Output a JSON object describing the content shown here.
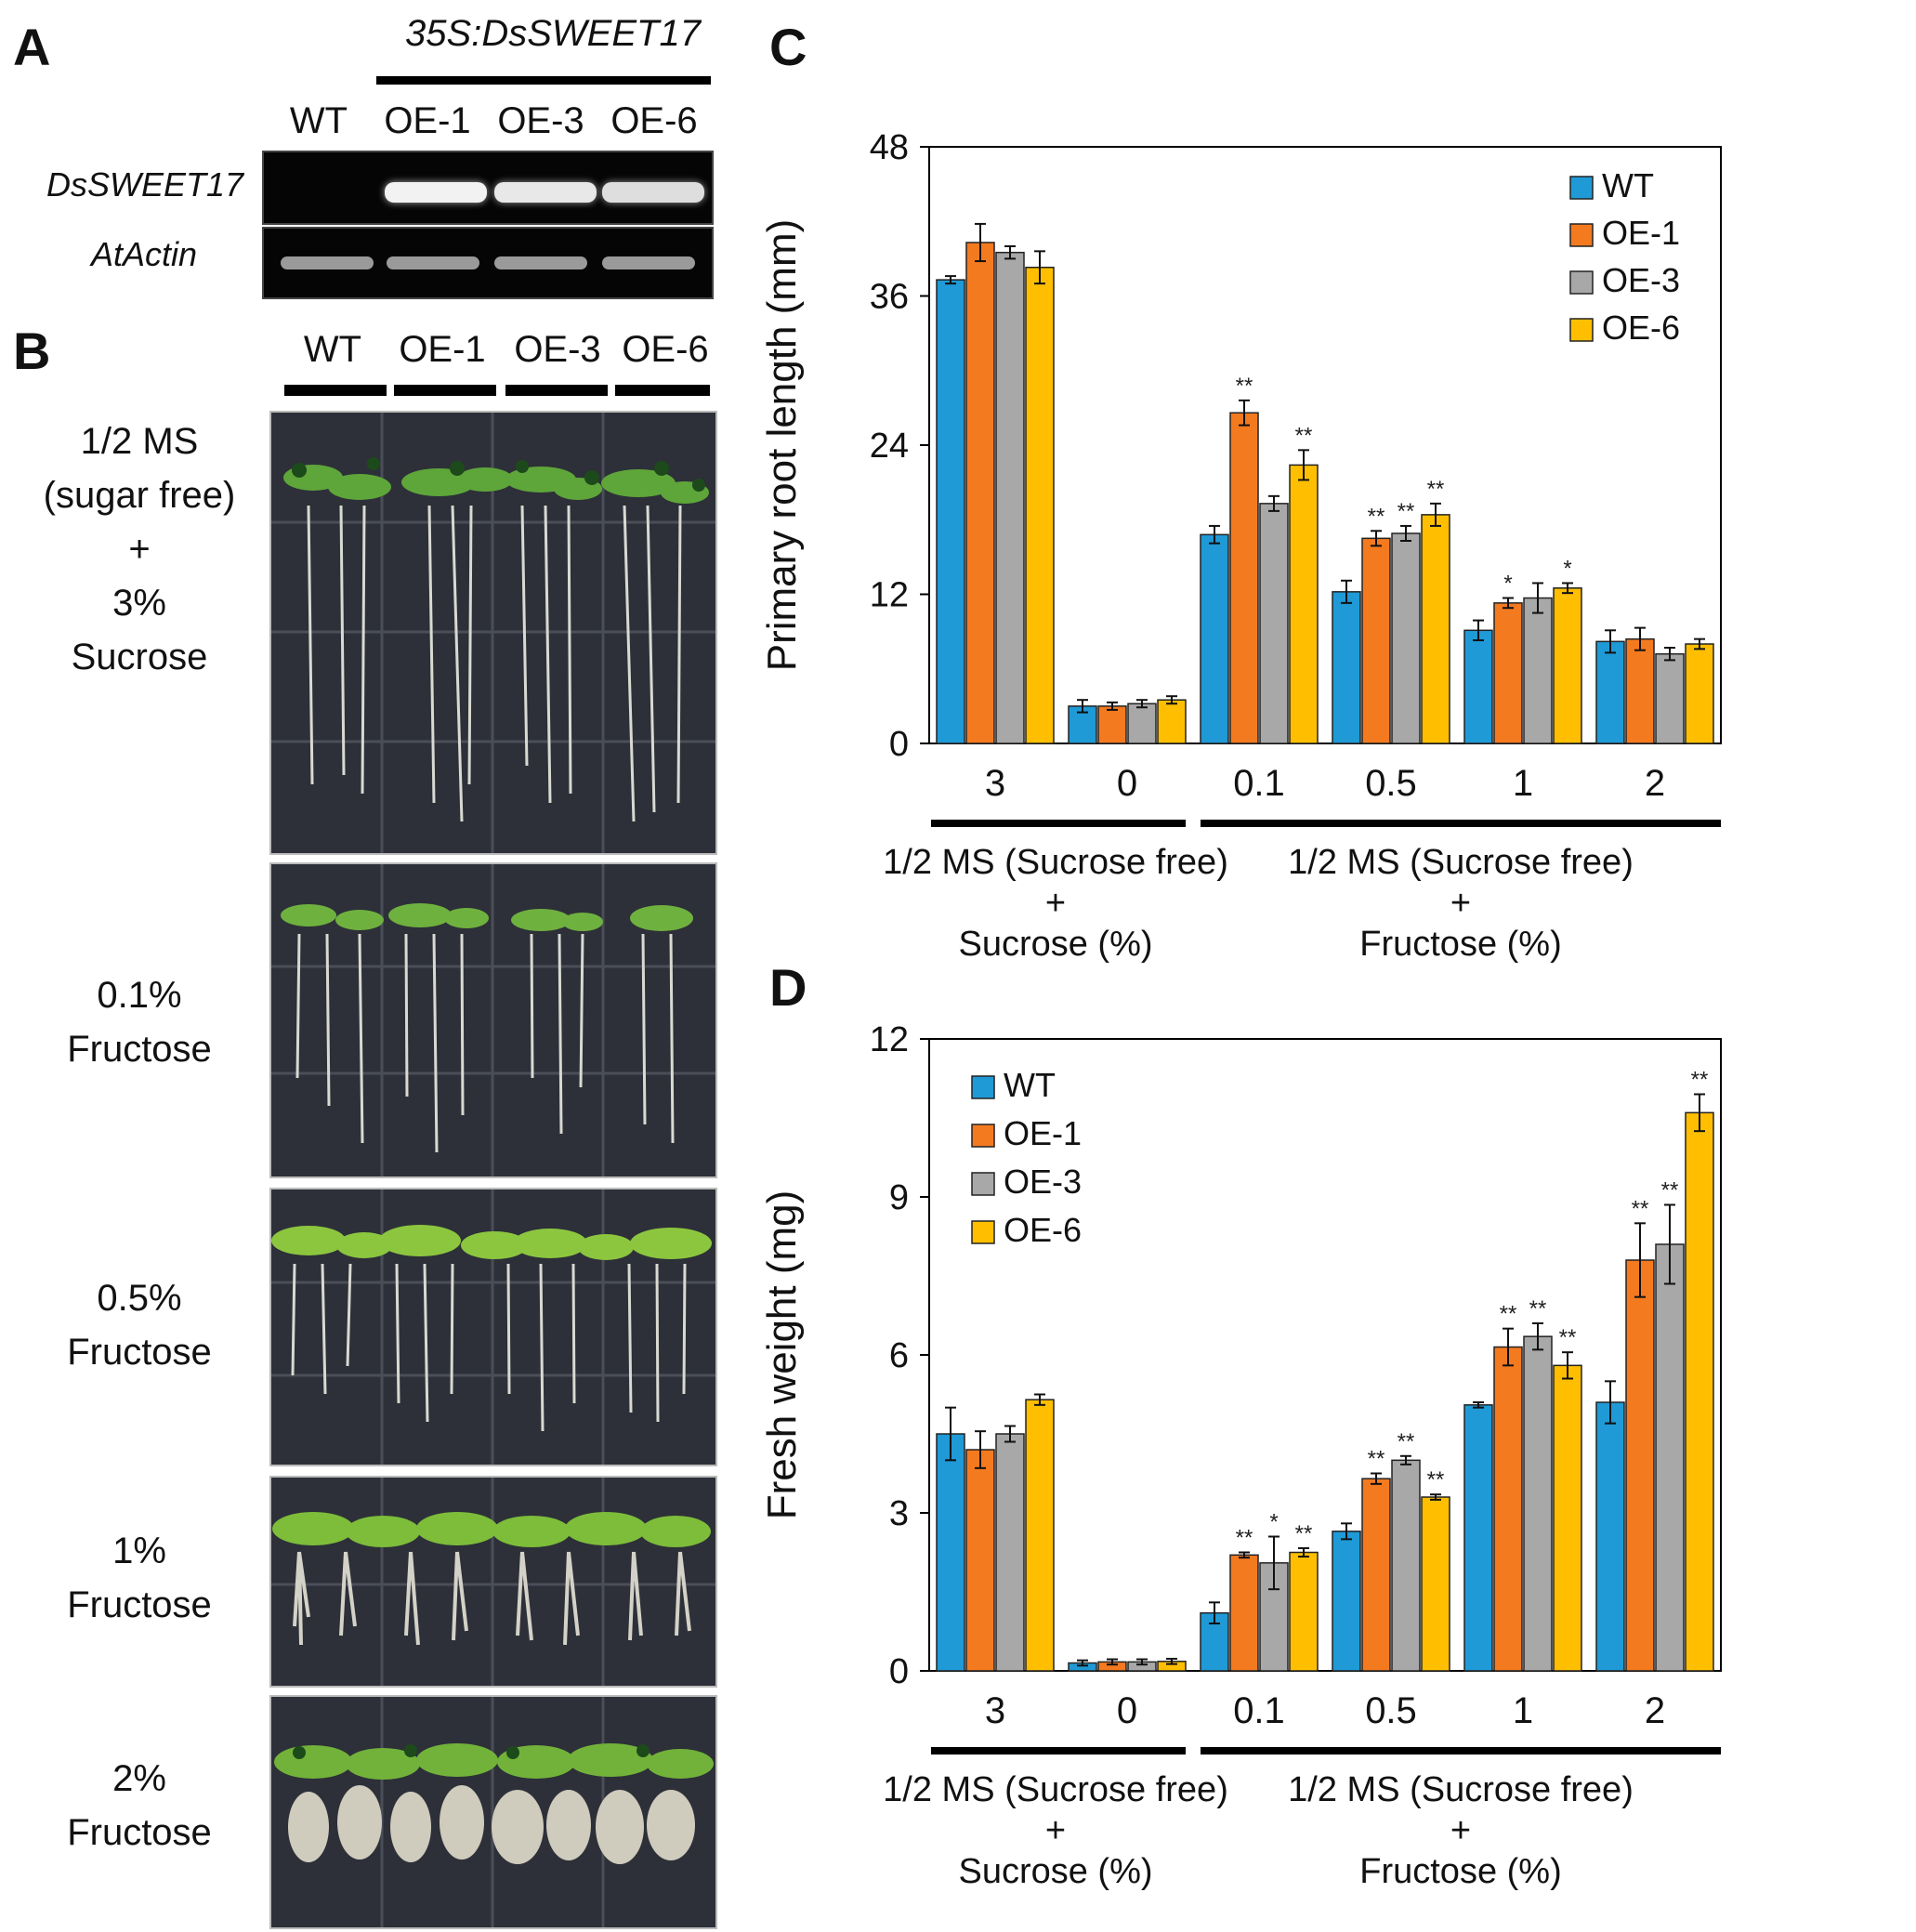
{
  "panel_labels": {
    "A": "A",
    "B": "B",
    "C": "C",
    "D": "D"
  },
  "panelA": {
    "construct": "35S:DsSWEET17",
    "lanes": [
      "WT",
      "OE-1",
      "OE-3",
      "OE-6"
    ],
    "genes": [
      "DsSWEET17",
      "AtActin"
    ]
  },
  "panelB": {
    "lanes": [
      "WT",
      "OE-1",
      "OE-3",
      "OE-6"
    ],
    "conditions": [
      {
        "lines": [
          "1/2 MS",
          "(sugar free)",
          "+",
          "3%",
          "Sucrose"
        ]
      },
      {
        "lines": [
          "0.1%",
          "Fructose"
        ]
      },
      {
        "lines": [
          "0.5%",
          "Fructose"
        ]
      },
      {
        "lines": [
          "1%",
          "Fructose"
        ]
      },
      {
        "lines": [
          "2%",
          "Fructose"
        ]
      }
    ]
  },
  "colors": {
    "WT": "#1f9ad6",
    "OE-1": "#f47a20",
    "OE-3": "#a8a8a8",
    "OE-6": "#ffbf00"
  },
  "chart_data": [
    {
      "type": "bar",
      "title": "",
      "xlabel": "",
      "ylabel": "Primary root length (mm)",
      "ylim": [
        0,
        48
      ],
      "yticks": [
        "0",
        "12",
        "24",
        "36",
        "48"
      ],
      "categories": [
        "3",
        "0",
        "0.1",
        "0.5",
        "1",
        "2"
      ],
      "group_labels": [
        {
          "lines": [
            "1/2 MS (Sucrose free)",
            "+",
            "Sucrose (%)"
          ]
        },
        {
          "lines": [
            "1/2 MS (Sucrose free)",
            "+",
            "Fructose (%)"
          ]
        }
      ],
      "legend_position": "top-right",
      "series": [
        {
          "name": "WT",
          "values": [
            37.3,
            3.0,
            16.8,
            12.2,
            9.1,
            8.2
          ],
          "errors": [
            0.3,
            0.5,
            0.7,
            0.9,
            0.8,
            0.9
          ],
          "sig": [
            "",
            "",
            "",
            "",
            "",
            ""
          ]
        },
        {
          "name": "OE-1",
          "values": [
            40.3,
            3.0,
            26.6,
            16.5,
            11.3,
            8.4
          ],
          "errors": [
            1.5,
            0.3,
            1.0,
            0.6,
            0.4,
            0.9
          ],
          "sig": [
            "",
            "",
            "**",
            "**",
            "*",
            ""
          ]
        },
        {
          "name": "OE-3",
          "values": [
            39.5,
            3.2,
            19.3,
            16.9,
            11.7,
            7.2
          ],
          "errors": [
            0.5,
            0.3,
            0.6,
            0.6,
            1.2,
            0.5
          ],
          "sig": [
            "",
            "",
            "",
            "**",
            "",
            ""
          ]
        },
        {
          "name": "OE-6",
          "values": [
            38.3,
            3.5,
            22.4,
            18.4,
            12.5,
            8.0
          ],
          "errors": [
            1.3,
            0.3,
            1.2,
            0.9,
            0.4,
            0.4
          ],
          "sig": [
            "",
            "",
            "**",
            "**",
            "*",
            ""
          ]
        }
      ]
    },
    {
      "type": "bar",
      "title": "",
      "xlabel": "",
      "ylabel": "Fresh weight (mg)",
      "ylim": [
        0,
        12
      ],
      "yticks": [
        "0",
        "3",
        "6",
        "9",
        "12"
      ],
      "categories": [
        "3",
        "0",
        "0.1",
        "0.5",
        "1",
        "2"
      ],
      "group_labels": [
        {
          "lines": [
            "1/2 MS (Sucrose free)",
            "+",
            "Sucrose (%)"
          ]
        },
        {
          "lines": [
            "1/2 MS (Sucrose free)",
            "+",
            "Fructose (%)"
          ]
        }
      ],
      "legend_position": "top-left",
      "series": [
        {
          "name": "WT",
          "values": [
            4.5,
            0.15,
            1.1,
            2.65,
            5.05,
            5.1
          ],
          "errors": [
            0.5,
            0.05,
            0.2,
            0.15,
            0.05,
            0.4
          ],
          "sig": [
            "",
            "",
            "",
            "",
            "",
            ""
          ]
        },
        {
          "name": "OE-1",
          "values": [
            4.2,
            0.17,
            2.2,
            3.65,
            6.15,
            7.8
          ],
          "errors": [
            0.35,
            0.05,
            0.05,
            0.1,
            0.35,
            0.7
          ],
          "sig": [
            "",
            "",
            "**",
            "**",
            "**",
            "**"
          ]
        },
        {
          "name": "OE-3",
          "values": [
            4.5,
            0.17,
            2.05,
            4.0,
            6.35,
            8.1
          ],
          "errors": [
            0.15,
            0.05,
            0.5,
            0.08,
            0.25,
            0.75
          ],
          "sig": [
            "",
            "",
            "*",
            "**",
            "**",
            "**"
          ]
        },
        {
          "name": "OE-6",
          "values": [
            5.15,
            0.18,
            2.25,
            3.3,
            5.8,
            10.6
          ],
          "errors": [
            0.1,
            0.05,
            0.08,
            0.05,
            0.25,
            0.35
          ],
          "sig": [
            "",
            "",
            "**",
            "**",
            "**",
            "**"
          ]
        }
      ]
    }
  ]
}
